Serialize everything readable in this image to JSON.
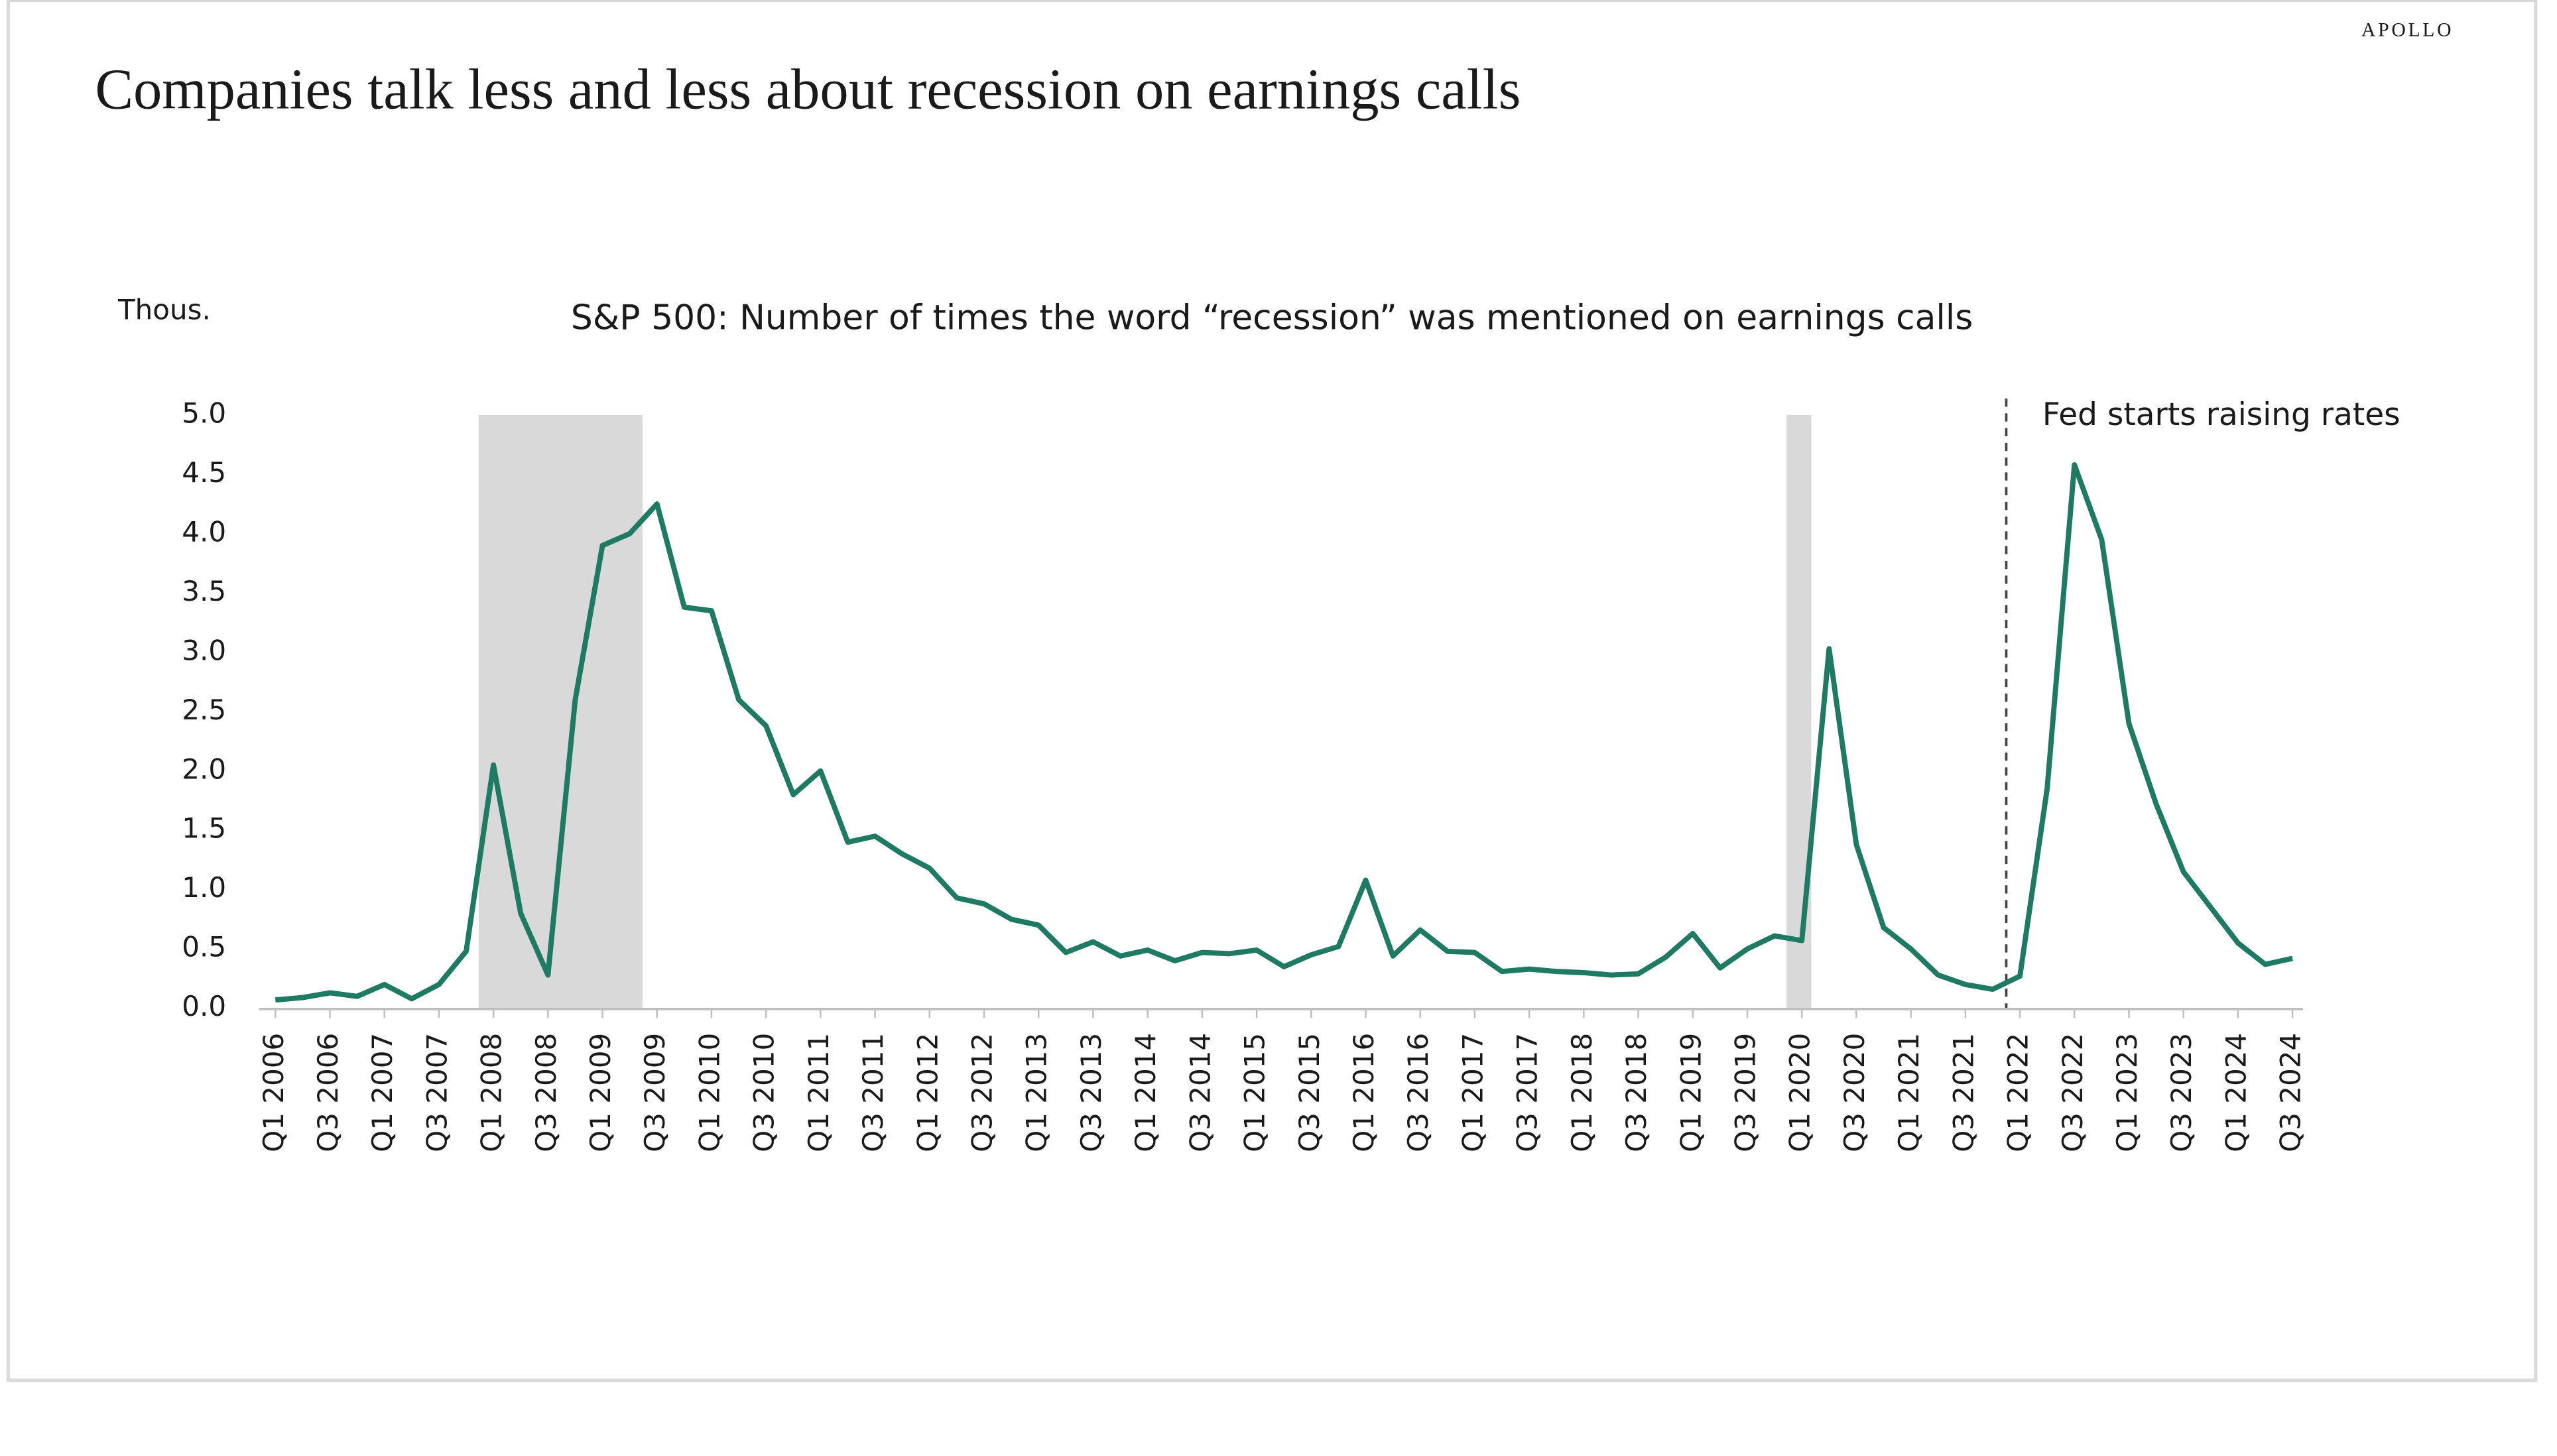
{
  "brand": "APOLLO",
  "header": {
    "title": "Companies talk less and less about recession on earnings calls"
  },
  "chart_data": {
    "type": "line",
    "title": "S&P 500: Number of times the word “recession” was mentioned on earnings calls",
    "y_label": "Thous.",
    "annotation": "Fed starts raising rates",
    "categories": [
      "Q1 2006",
      null,
      "Q3 2006",
      null,
      "Q1 2007",
      null,
      "Q3 2007",
      null,
      "Q1 2008",
      null,
      "Q3 2008",
      null,
      "Q1 2009",
      null,
      "Q3 2009",
      null,
      "Q1 2010",
      null,
      "Q3 2010",
      null,
      "Q1 2011",
      null,
      "Q3 2011",
      null,
      "Q1 2012",
      null,
      "Q3 2012",
      null,
      "Q1 2013",
      null,
      "Q3 2013",
      null,
      "Q1 2014",
      null,
      "Q3 2014",
      null,
      "Q1 2015",
      null,
      "Q3 2015",
      null,
      "Q1 2016",
      null,
      "Q3 2016",
      null,
      "Q1 2017",
      null,
      "Q3 2017",
      null,
      "Q1 2018",
      null,
      "Q3 2018",
      null,
      "Q1 2019",
      null,
      "Q3 2019",
      null,
      "Q1 2020",
      null,
      "Q3 2020",
      null,
      "Q1 2021",
      null,
      "Q3 2021",
      null,
      "Q1 2022",
      null,
      "Q3 2022",
      null,
      "Q1 2023",
      null,
      "Q3 2023",
      null,
      "Q1 2024",
      null,
      "Q3 2024"
    ],
    "values": [
      0.07,
      0.09,
      0.13,
      0.1,
      0.2,
      0.08,
      0.2,
      0.48,
      2.05,
      0.8,
      0.28,
      2.6,
      3.9,
      4.0,
      4.25,
      3.38,
      3.35,
      2.6,
      2.38,
      1.8,
      2.0,
      1.4,
      1.45,
      1.3,
      1.18,
      0.93,
      0.88,
      0.75,
      0.7,
      0.47,
      0.56,
      0.44,
      0.49,
      0.4,
      0.47,
      0.46,
      0.49,
      0.35,
      0.45,
      0.52,
      1.08,
      0.44,
      0.66,
      0.48,
      0.47,
      0.31,
      0.33,
      0.31,
      0.3,
      0.28,
      0.29,
      0.43,
      0.63,
      0.34,
      0.5,
      0.61,
      0.57,
      3.03,
      1.38,
      0.68,
      0.5,
      0.28,
      0.2,
      0.16,
      0.27,
      1.85,
      4.58,
      3.95,
      2.4,
      1.72,
      1.15,
      0.85,
      0.55,
      0.37,
      0.42
    ],
    "color": "#1f7a63",
    "ylim": [
      0,
      5
    ],
    "yticks": [
      {
        "value": 0,
        "label": "0.0"
      },
      {
        "value": 0.5,
        "label": "0.5"
      },
      {
        "value": 1,
        "label": "1.0"
      },
      {
        "value": 1.5,
        "label": "1.5"
      },
      {
        "value": 2,
        "label": "2.0"
      },
      {
        "value": 2.5,
        "label": "2.5"
      },
      {
        "value": 3,
        "label": "3.0"
      },
      {
        "value": 3.5,
        "label": "3.5"
      },
      {
        "value": 4,
        "label": "4.0"
      },
      {
        "value": 4.5,
        "label": "4.5"
      },
      {
        "value": 5,
        "label": "5.0"
      }
    ],
    "grid": false
  }
}
